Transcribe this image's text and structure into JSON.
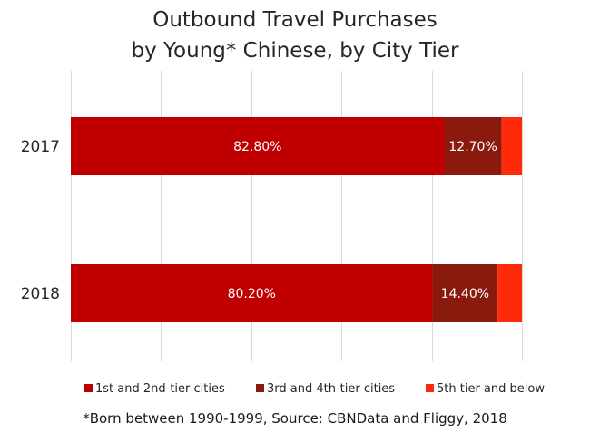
{
  "chart_data": {
    "type": "bar",
    "orientation": "horizontal",
    "stacked": true,
    "title": [
      "Outbound Travel Purchases",
      "by Young* Chinese, by City Tier"
    ],
    "footnote": "*Born between 1990-1999, Source: CBNData and Fliggy, 2018",
    "categories": [
      "2017",
      "2018"
    ],
    "xlim": [
      0,
      100
    ],
    "grid": true,
    "legend_position": "bottom",
    "series": [
      {
        "name": "1st and 2nd-tier cities",
        "color": "#c00000",
        "values": [
          82.8,
          80.2
        ],
        "labels": [
          "82.80%",
          "80.20%"
        ]
      },
      {
        "name": "3rd and 4th-tier cities",
        "color": "#8b1a0e",
        "values": [
          12.7,
          14.4
        ],
        "labels": [
          "12.70%",
          "14.40%"
        ]
      },
      {
        "name": "5th tier and below",
        "color": "#ff2a0a",
        "values": [
          4.5,
          5.4
        ],
        "labels": [
          "",
          ""
        ]
      }
    ]
  }
}
